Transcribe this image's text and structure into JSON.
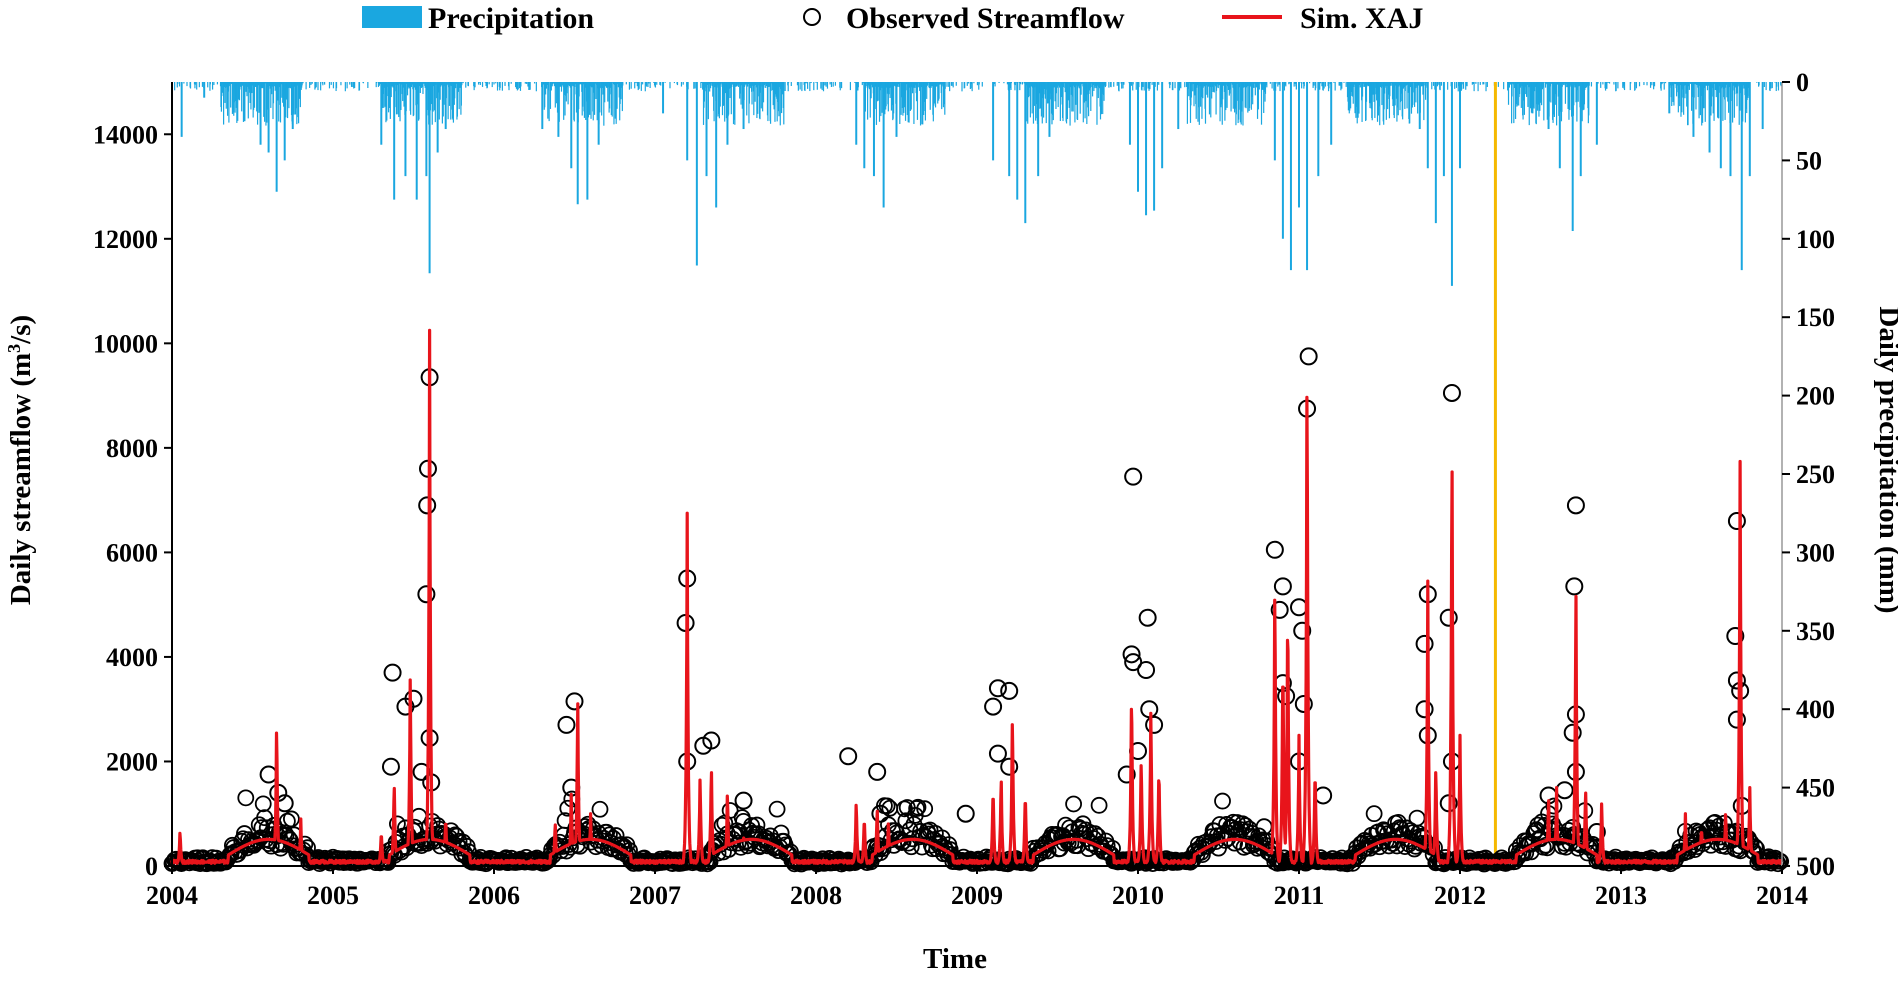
{
  "chart_data": {
    "type": "line",
    "xlabel": "Time",
    "ylabel_left_main": "Daily streamflow (m",
    "ylabel_left_sup": "3",
    "ylabel_left_tail": "/s)",
    "ylabel_right": "Daily precipitation (mm)",
    "x_range": [
      2004,
      2014
    ],
    "x_ticks": [
      "2004",
      "2005",
      "2006",
      "2007",
      "2008",
      "2009",
      "2010",
      "2011",
      "2012",
      "2013",
      "2014"
    ],
    "y_left_range": [
      0,
      15000
    ],
    "y_left_ticks": [
      "0",
      "2000",
      "4000",
      "6000",
      "8000",
      "10000",
      "12000",
      "14000"
    ],
    "y_right_range_inverted": [
      0,
      500
    ],
    "y_right_ticks": [
      "0",
      "50",
      "100",
      "150",
      "200",
      "250",
      "300",
      "350",
      "400",
      "450",
      "500"
    ],
    "grid": false,
    "legend_position": "top",
    "split_marker_year": 2012.22,
    "colors": {
      "precipitation": "#1aa7e0",
      "simulated": "#e8141b",
      "observed_marker": "#000000",
      "split_line": "#f5b800"
    },
    "series": [
      {
        "name": "Precipitation",
        "kind": "bar-hanging",
        "peaks": [
          [
            2004.06,
            35
          ],
          [
            2004.2,
            10
          ],
          [
            2004.45,
            25
          ],
          [
            2004.55,
            40
          ],
          [
            2004.6,
            45
          ],
          [
            2004.65,
            70
          ],
          [
            2004.7,
            50
          ],
          [
            2004.75,
            30
          ],
          [
            2005.3,
            40
          ],
          [
            2005.38,
            75
          ],
          [
            2005.45,
            60
          ],
          [
            2005.52,
            75
          ],
          [
            2005.58,
            60
          ],
          [
            2005.6,
            122
          ],
          [
            2005.65,
            45
          ],
          [
            2005.7,
            30
          ],
          [
            2006.3,
            30
          ],
          [
            2006.4,
            35
          ],
          [
            2006.48,
            55
          ],
          [
            2006.52,
            78
          ],
          [
            2006.58,
            75
          ],
          [
            2006.65,
            40
          ],
          [
            2007.05,
            20
          ],
          [
            2007.2,
            50
          ],
          [
            2007.26,
            117
          ],
          [
            2007.32,
            60
          ],
          [
            2007.38,
            80
          ],
          [
            2007.45,
            40
          ],
          [
            2007.55,
            30
          ],
          [
            2008.25,
            40
          ],
          [
            2008.3,
            55
          ],
          [
            2008.36,
            60
          ],
          [
            2008.42,
            80
          ],
          [
            2008.5,
            35
          ],
          [
            2009.1,
            50
          ],
          [
            2009.2,
            60
          ],
          [
            2009.25,
            75
          ],
          [
            2009.3,
            90
          ],
          [
            2009.38,
            60
          ],
          [
            2009.45,
            35
          ],
          [
            2009.95,
            40
          ],
          [
            2010.0,
            70
          ],
          [
            2010.05,
            85
          ],
          [
            2010.1,
            82
          ],
          [
            2010.15,
            55
          ],
          [
            2010.25,
            30
          ],
          [
            2010.85,
            50
          ],
          [
            2010.9,
            100
          ],
          [
            2010.95,
            120
          ],
          [
            2011.0,
            80
          ],
          [
            2011.05,
            120
          ],
          [
            2011.12,
            60
          ],
          [
            2011.2,
            40
          ],
          [
            2011.75,
            30
          ],
          [
            2011.8,
            55
          ],
          [
            2011.85,
            90
          ],
          [
            2011.9,
            60
          ],
          [
            2011.95,
            130
          ],
          [
            2012.0,
            55
          ],
          [
            2012.45,
            20
          ],
          [
            2012.55,
            30
          ],
          [
            2012.62,
            55
          ],
          [
            2012.7,
            95
          ],
          [
            2012.75,
            60
          ],
          [
            2012.85,
            40
          ],
          [
            2013.3,
            20
          ],
          [
            2013.45,
            35
          ],
          [
            2013.55,
            45
          ],
          [
            2013.62,
            55
          ],
          [
            2013.68,
            60
          ],
          [
            2013.75,
            120
          ],
          [
            2013.8,
            60
          ],
          [
            2013.88,
            30
          ]
        ]
      },
      {
        "name": "Observed Streamflow",
        "kind": "scatter",
        "notable_points": [
          [
            2004.6,
            1750
          ],
          [
            2004.66,
            1400
          ],
          [
            2004.7,
            1200
          ],
          [
            2005.37,
            3700
          ],
          [
            2005.36,
            1900
          ],
          [
            2005.45,
            3050
          ],
          [
            2005.5,
            3200
          ],
          [
            2005.55,
            1800
          ],
          [
            2005.6,
            9350
          ],
          [
            2005.59,
            7600
          ],
          [
            2005.585,
            6900
          ],
          [
            2005.58,
            5200
          ],
          [
            2005.6,
            2450
          ],
          [
            2005.61,
            1600
          ],
          [
            2006.45,
            2700
          ],
          [
            2006.5,
            3150
          ],
          [
            2006.48,
            1500
          ],
          [
            2007.2,
            5500
          ],
          [
            2007.19,
            4650
          ],
          [
            2007.2,
            2000
          ],
          [
            2007.3,
            2300
          ],
          [
            2007.35,
            2400
          ],
          [
            2007.55,
            1250
          ],
          [
            2008.2,
            2100
          ],
          [
            2008.38,
            1800
          ],
          [
            2008.4,
            1000
          ],
          [
            2008.93,
            1000
          ],
          [
            2009.1,
            3050
          ],
          [
            2009.13,
            3400
          ],
          [
            2009.2,
            3350
          ],
          [
            2009.13,
            2150
          ],
          [
            2009.2,
            1900
          ],
          [
            2009.97,
            7450
          ],
          [
            2009.96,
            4050
          ],
          [
            2009.97,
            3900
          ],
          [
            2010.06,
            4750
          ],
          [
            2010.05,
            3750
          ],
          [
            2010.07,
            3000
          ],
          [
            2010.1,
            2700
          ],
          [
            2010.0,
            2200
          ],
          [
            2009.93,
            1750
          ],
          [
            2010.85,
            6050
          ],
          [
            2010.9,
            5350
          ],
          [
            2010.88,
            4900
          ],
          [
            2010.9,
            3500
          ],
          [
            2010.92,
            3250
          ],
          [
            2011.0,
            4950
          ],
          [
            2011.02,
            4500
          ],
          [
            2011.05,
            8750
          ],
          [
            2011.06,
            9750
          ],
          [
            2011.03,
            3100
          ],
          [
            2011.0,
            2000
          ],
          [
            2011.15,
            1350
          ],
          [
            2011.8,
            5200
          ],
          [
            2011.78,
            4250
          ],
          [
            2011.78,
            3000
          ],
          [
            2011.8,
            2500
          ],
          [
            2011.95,
            9050
          ],
          [
            2011.93,
            4750
          ],
          [
            2011.95,
            2000
          ],
          [
            2011.93,
            1200
          ],
          [
            2012.55,
            1350
          ],
          [
            2012.65,
            1450
          ],
          [
            2012.72,
            6900
          ],
          [
            2012.71,
            5350
          ],
          [
            2012.72,
            2900
          ],
          [
            2012.7,
            2550
          ],
          [
            2012.72,
            1800
          ],
          [
            2012.85,
            650
          ],
          [
            2013.72,
            6600
          ],
          [
            2013.71,
            4400
          ],
          [
            2013.72,
            3550
          ],
          [
            2013.74,
            3350
          ],
          [
            2013.72,
            2800
          ],
          [
            2013.75,
            1150
          ]
        ]
      },
      {
        "name": "Sim. XAJ",
        "kind": "line",
        "peaks": [
          [
            2004.05,
            700
          ],
          [
            2004.65,
            2850
          ],
          [
            2004.8,
            900
          ],
          [
            2005.3,
            700
          ],
          [
            2005.38,
            1700
          ],
          [
            2005.48,
            3900
          ],
          [
            2005.6,
            10250
          ],
          [
            2005.7,
            1000
          ],
          [
            2006.38,
            900
          ],
          [
            2006.48,
            1500
          ],
          [
            2006.52,
            3400
          ],
          [
            2006.6,
            1000
          ],
          [
            2007.2,
            6750
          ],
          [
            2007.28,
            1800
          ],
          [
            2007.35,
            2000
          ],
          [
            2007.45,
            1500
          ],
          [
            2007.55,
            600
          ],
          [
            2008.25,
            1300
          ],
          [
            2008.3,
            1000
          ],
          [
            2008.38,
            1200
          ],
          [
            2008.45,
            900
          ],
          [
            2009.1,
            1600
          ],
          [
            2009.15,
            1800
          ],
          [
            2009.22,
            3100
          ],
          [
            2009.3,
            1500
          ],
          [
            2009.96,
            3600
          ],
          [
            2010.02,
            2200
          ],
          [
            2010.08,
            3200
          ],
          [
            2010.13,
            2000
          ],
          [
            2010.85,
            5700
          ],
          [
            2010.9,
            4300
          ],
          [
            2010.93,
            5300
          ],
          [
            2011.0,
            2500
          ],
          [
            2011.05,
            10050
          ],
          [
            2011.1,
            2000
          ],
          [
            2011.8,
            5450
          ],
          [
            2011.85,
            2000
          ],
          [
            2011.95,
            8450
          ],
          [
            2012.0,
            2500
          ],
          [
            2012.55,
            1400
          ],
          [
            2012.6,
            1500
          ],
          [
            2012.72,
            5650
          ],
          [
            2012.78,
            1600
          ],
          [
            2012.88,
            1300
          ],
          [
            2013.4,
            1000
          ],
          [
            2013.5,
            800
          ],
          [
            2013.65,
            1100
          ],
          [
            2013.74,
            8100
          ],
          [
            2013.8,
            1500
          ]
        ]
      }
    ]
  },
  "legend": {
    "precip_label": "Precipitation",
    "observed_label": "Observed Streamflow",
    "sim_label": "Sim. XAJ"
  }
}
